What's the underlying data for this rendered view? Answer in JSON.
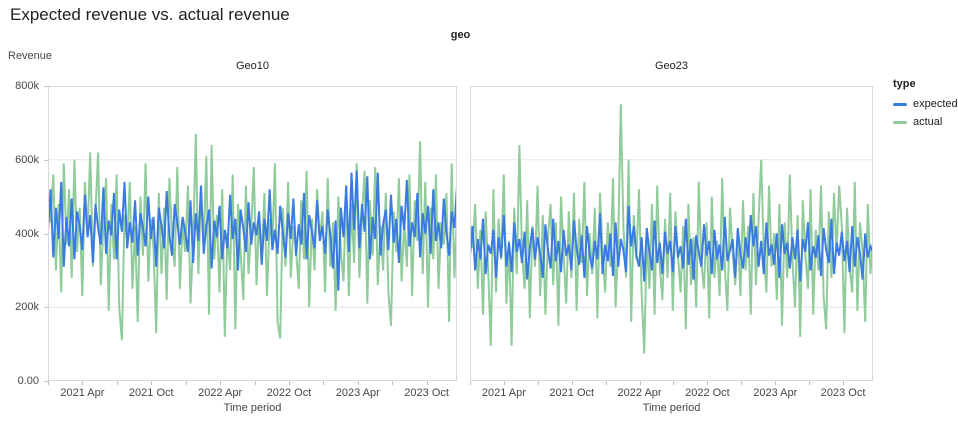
{
  "page": {
    "title": "Expected revenue vs. actual revenue"
  },
  "facet": {
    "label": "geo"
  },
  "legend": {
    "title": "type",
    "items": [
      {
        "label": "expected",
        "color": "#3a7be0"
      },
      {
        "label": "actual",
        "color": "#90cb9c"
      }
    ]
  },
  "colors": {
    "expected_line": "#3a7be0",
    "actual_line": "#90cb9c",
    "gridline": "#e5e5e5",
    "panel_border": "#d8d8d8",
    "axis_text": "#444746",
    "title_text": "#202124"
  },
  "axes": {
    "y": {
      "label": "Revenue",
      "ticks": [
        "800k",
        "600k",
        "400k",
        "200k",
        "0.00"
      ],
      "tick_values": [
        800,
        600,
        400,
        200,
        0
      ],
      "lim": [
        0,
        800
      ],
      "unit": "thousands"
    },
    "x": {
      "label": "Time period",
      "tick_labels": [
        "2021 Apr",
        "2021 Oct",
        "2022 Apr",
        "2022 Oct",
        "2023 Apr",
        "2023 Oct"
      ],
      "tick_months": [
        3,
        9,
        15,
        21,
        27,
        33
      ],
      "minor_tick_months": [
        0,
        6,
        12,
        18,
        24,
        30
      ],
      "axis_start": "2021 Jan",
      "axis_end": "2023 Dec"
    }
  },
  "chart_data": [
    {
      "type": "line",
      "panel": "Geo10",
      "x_start": "2021 Jan",
      "x_frequency": "weekly",
      "points": 156,
      "value_unit": "thousands (k)",
      "ylim": [
        0,
        800
      ],
      "grid": "horizontal",
      "series": [
        {
          "name": "expected",
          "color": "#3a7be0",
          "values": [
            410,
            520,
            335,
            470,
            385,
            540,
            310,
            445,
            365,
            495,
            330,
            460,
            420,
            355,
            505,
            390,
            450,
            320,
            480,
            415,
            370,
            525,
            345,
            435,
            395,
            510,
            330,
            465,
            405,
            540,
            360,
            430,
            375,
            490,
            340,
            455,
            415,
            365,
            500,
            385,
            445,
            310,
            470,
            420,
            360,
            515,
            395,
            340,
            480,
            430,
            370,
            445,
            405,
            350,
            490,
            320,
            455,
            380,
            530,
            345,
            420,
            465,
            305,
            435,
            390,
            475,
            330,
            410,
            360,
            505,
            385,
            440,
            300,
            465,
            415,
            350,
            485,
            370,
            430,
            395,
            460,
            315,
            440,
            380,
            520,
            355,
            410,
            345,
            475,
            400,
            335,
            455,
            385,
            495,
            340,
            425,
            370,
            510,
            330,
            450,
            405,
            360,
            490,
            380,
            420,
            345,
            465,
            395,
            305,
            435,
            245,
            470,
            390,
            530,
            350,
            565,
            410,
            570,
            360,
            480,
            405,
            555,
            330,
            445,
            385,
            565,
            340,
            425,
            465,
            355,
            505,
            375,
            440,
            320,
            475,
            410,
            545,
            365,
            430,
            390,
            510,
            335,
            455,
            400,
            475,
            345,
            520,
            380,
            430,
            360,
            495,
            405,
            340,
            460,
            415,
            530
          ]
        },
        {
          "name": "actual",
          "color": "#90cb9c",
          "values": [
            510,
            430,
            560,
            300,
            480,
            240,
            590,
            370,
            520,
            280,
            600,
            350,
            470,
            230,
            540,
            400,
            620,
            310,
            460,
            620,
            260,
            430,
            550,
            190,
            480,
            330,
            560,
            200,
            110,
            450,
            380,
            540,
            250,
            420,
            160,
            500,
            340,
            590,
            270,
            440,
            360,
            130,
            510,
            290,
            470,
            220,
            550,
            390,
            310,
            580,
            250,
            430,
            350,
            530,
            210,
            380,
            670,
            290,
            520,
            360,
            610,
            180,
            640,
            330,
            450,
            240,
            520,
            120,
            400,
            300,
            560,
            140,
            480,
            350,
            220,
            530,
            290,
            410,
            580,
            260,
            450,
            330,
            510,
            230,
            440,
            370,
            590,
            160,
            115,
            470,
            310,
            540,
            280,
            420,
            360,
            250,
            490,
            330,
            570,
            200,
            440,
            300,
            520,
            380,
            460,
            240,
            550,
            310,
            430,
            190,
            500,
            350,
            270,
            530,
            230,
            480,
            320,
            590,
            280,
            450,
            570,
            210,
            490,
            340,
            580,
            260,
            420,
            300,
            510,
            240,
            150,
            460,
            350,
            550,
            270,
            430,
            310,
            560,
            230,
            490,
            380,
            650,
            290,
            540,
            200,
            470,
            330,
            560,
            250,
            430,
            370,
            510,
            160,
            590,
            280,
            450
          ]
        }
      ]
    },
    {
      "type": "line",
      "panel": "Geo23",
      "x_start": "2021 Jan",
      "x_frequency": "weekly",
      "points": 156,
      "value_unit": "thousands (k)",
      "ylim": [
        0,
        800
      ],
      "grid": "horizontal",
      "series": [
        {
          "name": "expected",
          "color": "#3a7be0",
          "values": [
            340,
            420,
            300,
            385,
            330,
            440,
            290,
            370,
            345,
            410,
            280,
            390,
            335,
            450,
            310,
            375,
            295,
            430,
            350,
            385,
            320,
            405,
            275,
            360,
            415,
            330,
            390,
            345,
            280,
            425,
            355,
            305,
            440,
            325,
            380,
            295,
            410,
            340,
            370,
            300,
            435,
            360,
            315,
            395,
            280,
            420,
            345,
            305,
            380,
            330,
            455,
            290,
            370,
            325,
            400,
            285,
            430,
            310,
            385,
            355,
            295,
            475,
            365,
            420,
            340,
            310,
            390,
            270,
            415,
            350,
            300,
            435,
            320,
            375,
            290,
            405,
            345,
            380,
            295,
            420,
            335,
            365,
            305,
            440,
            315,
            385,
            275,
            395,
            350,
            310,
            425,
            340,
            380,
            290,
            410,
            330,
            370,
            300,
            445,
            325,
            355,
            385,
            280,
            415,
            345,
            305,
            390,
            335,
            450,
            365,
            420,
            310,
            380,
            290,
            430,
            340,
            370,
            315,
            400,
            280,
            425,
            345,
            375,
            305,
            390,
            330,
            410,
            270,
            385,
            350,
            430,
            300,
            365,
            335,
            395,
            285,
            415,
            355,
            320,
            440,
            290,
            375,
            340,
            405,
            325,
            380,
            295,
            420,
            310,
            390,
            345,
            275,
            400,
            335,
            365,
            350
          ]
        },
        {
          "name": "actual",
          "color": "#90cb9c",
          "values": [
            430,
            360,
            480,
            250,
            410,
            180,
            460,
            300,
            95,
            520,
            240,
            440,
            330,
            560,
            210,
            380,
            95,
            470,
            290,
            640,
            350,
            250,
            490,
            170,
            420,
            310,
            530,
            230,
            450,
            180,
            390,
            480,
            260,
            430,
            150,
            500,
            340,
            210,
            460,
            280,
            510,
            190,
            440,
            320,
            540,
            230,
            400,
            290,
            470,
            170,
            510,
            350,
            240,
            430,
            310,
            550,
            200,
            380,
            750,
            420,
            280,
            600,
            160,
            450,
            330,
            520,
            240,
            75,
            390,
            250,
            480,
            180,
            530,
            310,
            220,
            440,
            280,
            510,
            190,
            460,
            340,
            240,
            420,
            140,
            480,
            260,
            390,
            200,
            540,
            320,
            250,
            430,
            170,
            500,
            280,
            380,
            230,
            550,
            310,
            190,
            470,
            350,
            260,
            410,
            230,
            490,
            300,
            420,
            180,
            510,
            260,
            440,
            600,
            350,
            240,
            530,
            310,
            400,
            220,
            480,
            150,
            430,
            280,
            560,
            330,
            200,
            450,
            120,
            490,
            340,
            250,
            520,
            180,
            410,
            300,
            530,
            230,
            140,
            460,
            280,
            510,
            350,
            530,
            420,
            130,
            470,
            310,
            240,
            540,
            190,
            430,
            350,
            160,
            480,
            290,
            380
          ]
        }
      ]
    }
  ]
}
